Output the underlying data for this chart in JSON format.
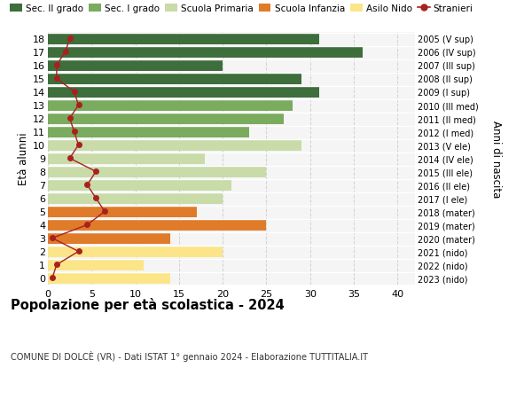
{
  "ages": [
    0,
    1,
    2,
    3,
    4,
    5,
    6,
    7,
    8,
    9,
    10,
    11,
    12,
    13,
    14,
    15,
    16,
    17,
    18
  ],
  "anni_nascita": [
    "2023 (nido)",
    "2022 (nido)",
    "2021 (nido)",
    "2020 (mater)",
    "2019 (mater)",
    "2018 (mater)",
    "2017 (I ele)",
    "2016 (II ele)",
    "2015 (III ele)",
    "2014 (IV ele)",
    "2013 (V ele)",
    "2012 (I med)",
    "2011 (II med)",
    "2010 (III med)",
    "2009 (I sup)",
    "2008 (II sup)",
    "2007 (III sup)",
    "2006 (IV sup)",
    "2005 (V sup)"
  ],
  "bar_values": [
    14,
    11,
    20,
    14,
    25,
    17,
    20,
    21,
    25,
    18,
    29,
    23,
    27,
    28,
    31,
    29,
    20,
    36,
    31
  ],
  "stranieri": [
    0.5,
    1.0,
    3.5,
    0.5,
    4.5,
    6.5,
    5.5,
    4.5,
    5.5,
    2.5,
    3.5,
    3.0,
    2.5,
    3.5,
    3.0,
    1.0,
    1.0,
    2.0,
    2.5
  ],
  "bar_colors": [
    "#fce589",
    "#fce589",
    "#fce589",
    "#e07b2a",
    "#e07b2a",
    "#e07b2a",
    "#c8dba8",
    "#c8dba8",
    "#c8dba8",
    "#c8dba8",
    "#c8dba8",
    "#7aab5e",
    "#7aab5e",
    "#7aab5e",
    "#3d6e3b",
    "#3d6e3b",
    "#3d6e3b",
    "#3d6e3b",
    "#3d6e3b"
  ],
  "legend_colors": {
    "Sec. II grado": "#3d6e3b",
    "Sec. I grado": "#7aab5e",
    "Scuola Primaria": "#c8dba8",
    "Scuola Infanzia": "#e07b2a",
    "Asilo Nido": "#fce589",
    "Stranieri": "#aa2020"
  },
  "title": "Popolazione per età scolastica - 2024",
  "subtitle": "COMUNE DI DOLCÈ (VR) - Dati ISTAT 1° gennaio 2024 - Elaborazione TUTTITALIA.IT",
  "right_ylabel": "Anni di nascita",
  "ylabel": "Età alunni",
  "xlim": [
    0,
    42
  ],
  "background_color": "#ffffff",
  "plot_bg": "#f5f5f5",
  "stranieri_color": "#aa2020",
  "grid_color": "#cccccc"
}
